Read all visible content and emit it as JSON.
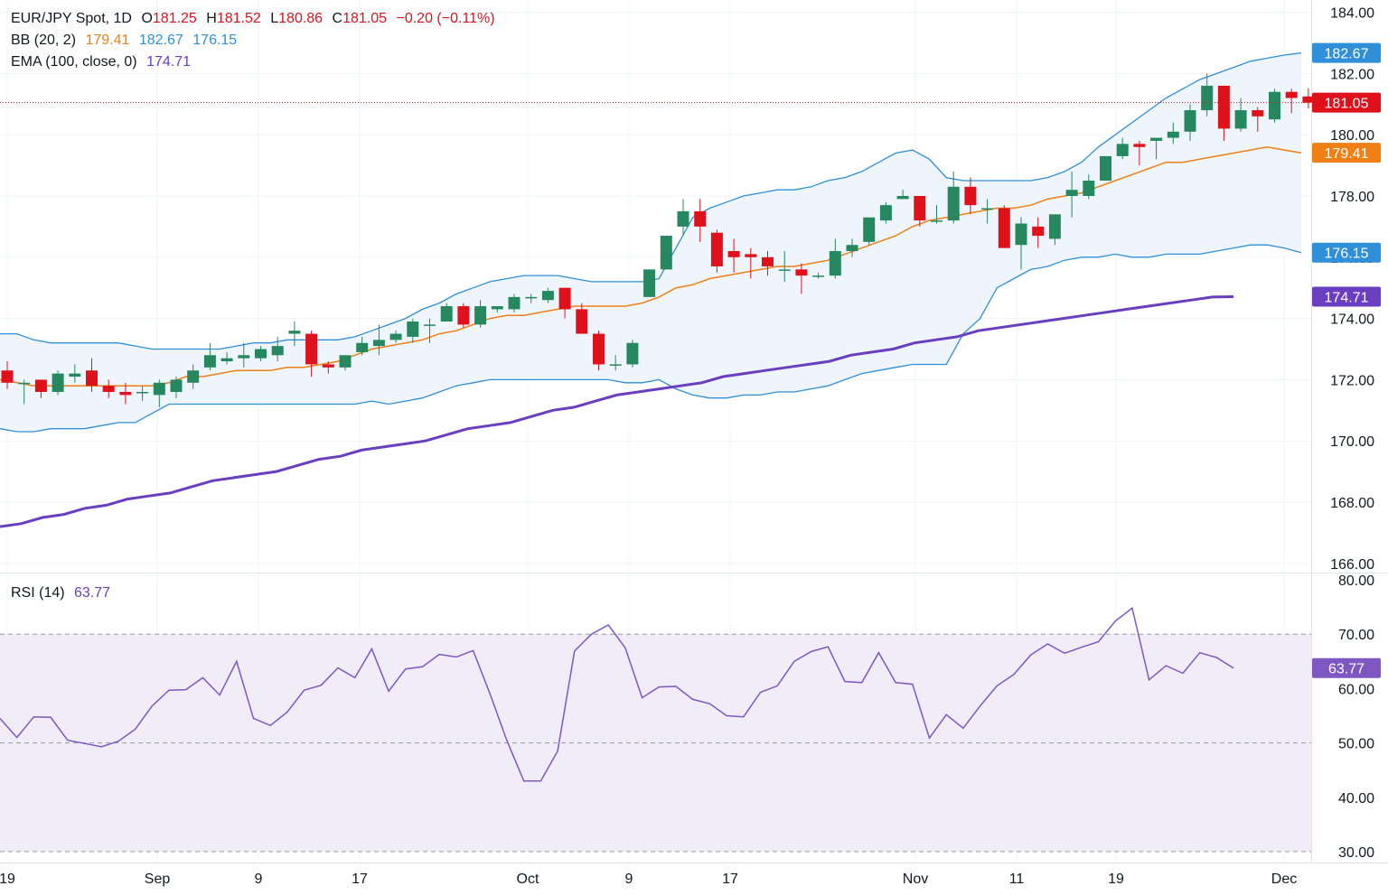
{
  "header": {
    "symbol": "EUR/JPY Spot, 1D",
    "open_label": "O",
    "open": "181.25",
    "high_label": "H",
    "high": "181.52",
    "low_label": "L",
    "low": "180.86",
    "close_label": "C",
    "close": "181.05",
    "change": "−0.20 (−0.11%)"
  },
  "indicators": {
    "bb": {
      "label": "BB (20, 2)",
      "basis": "179.41",
      "upper": "182.67",
      "lower": "176.15"
    },
    "ema": {
      "label": "EMA (100, close, 0)",
      "value": "174.71"
    },
    "rsi": {
      "label": "RSI (14)",
      "value": "63.77"
    }
  },
  "colors": {
    "up": "#26885e",
    "down": "#e0111b",
    "bb_band": "#2f8fd8",
    "bb_basis": "#f07f16",
    "ema": "#6a3ec0",
    "rsi": "#7e57c2",
    "rsi_fill": "#f0ecf8",
    "bb_fill": "#eef5fc"
  },
  "chart_data": [
    {
      "type": "candlestick",
      "title": "EUR/JPY Spot, 1D",
      "ylim": [
        165.7,
        184.4
      ],
      "y_ticks": [
        "184.00",
        "182.00",
        "180.00",
        "178.00",
        "176.00",
        "174.00",
        "172.00",
        "170.00",
        "168.00",
        "166.00"
      ],
      "x_ticks": [
        "19",
        "Sep",
        "9",
        "17",
        "Oct",
        "9",
        "17",
        "Nov",
        "11",
        "19",
        "Dec"
      ],
      "candles": [
        {
          "o": 172.3,
          "h": 172.6,
          "l": 171.7,
          "c": 171.9
        },
        {
          "o": 171.9,
          "h": 172.0,
          "l": 171.2,
          "c": 171.9
        },
        {
          "o": 172.0,
          "h": 172.0,
          "l": 171.4,
          "c": 171.6
        },
        {
          "o": 171.6,
          "h": 172.3,
          "l": 171.5,
          "c": 172.2
        },
        {
          "o": 172.1,
          "h": 172.5,
          "l": 171.9,
          "c": 172.2
        },
        {
          "o": 172.3,
          "h": 172.7,
          "l": 171.6,
          "c": 171.8
        },
        {
          "o": 171.8,
          "h": 172.0,
          "l": 171.4,
          "c": 171.6
        },
        {
          "o": 171.6,
          "h": 171.9,
          "l": 171.2,
          "c": 171.5
        },
        {
          "o": 171.6,
          "h": 171.8,
          "l": 171.3,
          "c": 171.6
        },
        {
          "o": 171.5,
          "h": 172.0,
          "l": 171.1,
          "c": 171.9
        },
        {
          "o": 171.6,
          "h": 172.1,
          "l": 171.4,
          "c": 172.0
        },
        {
          "o": 171.9,
          "h": 172.5,
          "l": 171.7,
          "c": 172.3
        },
        {
          "o": 172.4,
          "h": 173.2,
          "l": 172.3,
          "c": 172.8
        },
        {
          "o": 172.6,
          "h": 172.9,
          "l": 172.5,
          "c": 172.7
        },
        {
          "o": 172.7,
          "h": 173.2,
          "l": 172.4,
          "c": 172.8
        },
        {
          "o": 172.7,
          "h": 173.1,
          "l": 172.6,
          "c": 173.0
        },
        {
          "o": 172.8,
          "h": 173.4,
          "l": 172.6,
          "c": 173.1
        },
        {
          "o": 173.5,
          "h": 173.9,
          "l": 173.1,
          "c": 173.6
        },
        {
          "o": 173.5,
          "h": 173.6,
          "l": 172.1,
          "c": 172.5
        },
        {
          "o": 172.5,
          "h": 172.6,
          "l": 172.2,
          "c": 172.4
        },
        {
          "o": 172.4,
          "h": 172.8,
          "l": 172.3,
          "c": 172.8
        },
        {
          "o": 172.9,
          "h": 173.4,
          "l": 172.8,
          "c": 173.2
        },
        {
          "o": 173.1,
          "h": 173.8,
          "l": 172.8,
          "c": 173.3
        },
        {
          "o": 173.3,
          "h": 173.6,
          "l": 173.2,
          "c": 173.5
        },
        {
          "o": 173.4,
          "h": 174.0,
          "l": 173.2,
          "c": 173.9
        },
        {
          "o": 173.8,
          "h": 174.0,
          "l": 173.2,
          "c": 173.8
        },
        {
          "o": 173.9,
          "h": 174.5,
          "l": 173.9,
          "c": 174.4
        },
        {
          "o": 174.4,
          "h": 174.5,
          "l": 173.7,
          "c": 173.8
        },
        {
          "o": 173.8,
          "h": 174.6,
          "l": 173.7,
          "c": 174.4
        },
        {
          "o": 174.3,
          "h": 174.4,
          "l": 174.2,
          "c": 174.4
        },
        {
          "o": 174.3,
          "h": 174.8,
          "l": 174.2,
          "c": 174.7
        },
        {
          "o": 174.7,
          "h": 174.8,
          "l": 174.5,
          "c": 174.7
        },
        {
          "o": 174.6,
          "h": 175.0,
          "l": 174.5,
          "c": 174.9
        },
        {
          "o": 175.0,
          "h": 175.0,
          "l": 174.0,
          "c": 174.3
        },
        {
          "o": 174.3,
          "h": 174.5,
          "l": 173.5,
          "c": 173.5
        },
        {
          "o": 173.5,
          "h": 173.6,
          "l": 172.3,
          "c": 172.5
        },
        {
          "o": 172.5,
          "h": 172.8,
          "l": 172.3,
          "c": 172.5
        },
        {
          "o": 172.5,
          "h": 173.3,
          "l": 172.4,
          "c": 173.2
        },
        {
          "o": 174.7,
          "h": 175.6,
          "l": 174.7,
          "c": 175.6
        },
        {
          "o": 175.6,
          "h": 176.7,
          "l": 175.6,
          "c": 176.7
        },
        {
          "o": 177.0,
          "h": 177.9,
          "l": 176.7,
          "c": 177.5
        },
        {
          "o": 177.5,
          "h": 177.9,
          "l": 176.5,
          "c": 177.0
        },
        {
          "o": 176.8,
          "h": 176.9,
          "l": 175.5,
          "c": 175.7
        },
        {
          "o": 176.2,
          "h": 176.6,
          "l": 175.5,
          "c": 176.0
        },
        {
          "o": 176.1,
          "h": 176.3,
          "l": 175.3,
          "c": 176.0
        },
        {
          "o": 176.0,
          "h": 176.2,
          "l": 175.4,
          "c": 175.7
        },
        {
          "o": 175.6,
          "h": 176.2,
          "l": 175.2,
          "c": 175.6
        },
        {
          "o": 175.6,
          "h": 175.8,
          "l": 174.8,
          "c": 175.4
        },
        {
          "o": 175.4,
          "h": 175.5,
          "l": 175.3,
          "c": 175.4
        },
        {
          "o": 175.4,
          "h": 176.6,
          "l": 175.3,
          "c": 176.2
        },
        {
          "o": 176.2,
          "h": 176.6,
          "l": 176.0,
          "c": 176.4
        },
        {
          "o": 176.5,
          "h": 177.3,
          "l": 176.4,
          "c": 177.3
        },
        {
          "o": 177.2,
          "h": 177.8,
          "l": 177.1,
          "c": 177.7
        },
        {
          "o": 177.9,
          "h": 178.2,
          "l": 177.9,
          "c": 178.0
        },
        {
          "o": 178.0,
          "h": 178.0,
          "l": 177.0,
          "c": 177.2
        },
        {
          "o": 177.2,
          "h": 177.7,
          "l": 177.1,
          "c": 177.2
        },
        {
          "o": 177.2,
          "h": 178.8,
          "l": 177.1,
          "c": 178.3
        },
        {
          "o": 178.3,
          "h": 178.6,
          "l": 177.4,
          "c": 177.7
        },
        {
          "o": 177.6,
          "h": 177.9,
          "l": 177.1,
          "c": 177.6
        },
        {
          "o": 177.6,
          "h": 177.7,
          "l": 176.3,
          "c": 176.3
        },
        {
          "o": 176.4,
          "h": 177.3,
          "l": 175.6,
          "c": 177.1
        },
        {
          "o": 177.0,
          "h": 177.3,
          "l": 176.3,
          "c": 176.7
        },
        {
          "o": 176.6,
          "h": 177.4,
          "l": 176.4,
          "c": 177.4
        },
        {
          "o": 178.0,
          "h": 178.8,
          "l": 177.3,
          "c": 178.2
        },
        {
          "o": 178.0,
          "h": 178.7,
          "l": 177.9,
          "c": 178.5
        },
        {
          "o": 178.5,
          "h": 179.3,
          "l": 178.5,
          "c": 179.3
        },
        {
          "o": 179.3,
          "h": 179.9,
          "l": 179.2,
          "c": 179.7
        },
        {
          "o": 179.7,
          "h": 179.8,
          "l": 179.0,
          "c": 179.6
        },
        {
          "o": 179.8,
          "h": 179.9,
          "l": 179.2,
          "c": 179.9
        },
        {
          "o": 179.9,
          "h": 180.4,
          "l": 179.7,
          "c": 180.1
        },
        {
          "o": 180.1,
          "h": 181.0,
          "l": 179.8,
          "c": 180.8
        },
        {
          "o": 180.8,
          "h": 182.0,
          "l": 180.6,
          "c": 181.6
        },
        {
          "o": 181.6,
          "h": 181.6,
          "l": 179.8,
          "c": 180.2
        },
        {
          "o": 180.2,
          "h": 181.2,
          "l": 180.1,
          "c": 180.8
        },
        {
          "o": 180.8,
          "h": 180.9,
          "l": 180.1,
          "c": 180.6
        },
        {
          "o": 180.5,
          "h": 181.5,
          "l": 180.4,
          "c": 181.4
        },
        {
          "o": 181.4,
          "h": 181.5,
          "l": 180.7,
          "c": 181.2
        },
        {
          "o": 181.25,
          "h": 181.52,
          "l": 180.86,
          "c": 181.05
        }
      ],
      "bb_upper": [
        173.5,
        173.5,
        173.3,
        173.2,
        173.2,
        173.2,
        173.2,
        173.2,
        173.1,
        173.0,
        173.0,
        173.0,
        173.0,
        173.0,
        173.1,
        173.2,
        173.2,
        173.3,
        173.3,
        173.3,
        173.3,
        173.4,
        173.6,
        173.8,
        174.0,
        174.3,
        174.5,
        174.8,
        175.0,
        175.2,
        175.3,
        175.4,
        175.4,
        175.4,
        175.3,
        175.2,
        175.2,
        175.2,
        175.2,
        175.3,
        176.3,
        177.3,
        177.6,
        177.8,
        178.0,
        178.1,
        178.2,
        178.2,
        178.3,
        178.5,
        178.6,
        178.8,
        179.1,
        179.4,
        179.5,
        179.2,
        178.6,
        178.5,
        178.5,
        178.5,
        178.5,
        178.5,
        178.6,
        178.8,
        179.1,
        179.6,
        180.0,
        180.4,
        180.8,
        181.2,
        181.5,
        181.8,
        182.0,
        182.2,
        182.4,
        182.5,
        182.6,
        182.67
      ],
      "bb_basis": [
        172.0,
        171.9,
        171.8,
        171.8,
        171.8,
        171.8,
        171.8,
        171.8,
        171.8,
        171.8,
        171.9,
        172.1,
        172.1,
        172.2,
        172.3,
        172.3,
        172.3,
        172.4,
        172.4,
        172.5,
        172.6,
        172.8,
        173.0,
        173.1,
        173.2,
        173.3,
        173.5,
        173.6,
        173.8,
        174.0,
        174.1,
        174.1,
        174.2,
        174.3,
        174.4,
        174.4,
        174.4,
        174.4,
        174.5,
        174.7,
        175.0,
        175.1,
        175.3,
        175.4,
        175.5,
        175.6,
        175.7,
        175.7,
        175.8,
        175.9,
        176.1,
        176.3,
        176.5,
        176.7,
        177.0,
        177.2,
        177.3,
        177.4,
        177.5,
        177.6,
        177.6,
        177.7,
        177.9,
        178.0,
        178.1,
        178.3,
        178.5,
        178.7,
        178.9,
        179.1,
        179.1,
        179.2,
        179.3,
        179.4,
        179.5,
        179.6,
        179.5,
        179.41
      ],
      "bb_lower": [
        170.4,
        170.3,
        170.3,
        170.4,
        170.4,
        170.4,
        170.5,
        170.6,
        170.6,
        170.9,
        171.2,
        171.2,
        171.2,
        171.2,
        171.2,
        171.2,
        171.2,
        171.2,
        171.2,
        171.2,
        171.2,
        171.2,
        171.3,
        171.2,
        171.3,
        171.4,
        171.6,
        171.8,
        171.9,
        172.0,
        172.0,
        172.0,
        172.0,
        172.0,
        172.0,
        172.0,
        172.0,
        171.9,
        171.9,
        172.0,
        171.7,
        171.5,
        171.4,
        171.4,
        171.5,
        171.5,
        171.6,
        171.6,
        171.7,
        171.8,
        172.0,
        172.2,
        172.3,
        172.4,
        172.5,
        172.5,
        172.5,
        173.5,
        174.0,
        175.0,
        175.3,
        175.6,
        175.7,
        175.9,
        176.0,
        176.0,
        176.1,
        176.0,
        176.0,
        176.1,
        176.1,
        176.1,
        176.2,
        176.3,
        176.4,
        176.4,
        176.3,
        176.15
      ],
      "ema100": [
        167.2,
        167.3,
        167.5,
        167.6,
        167.8,
        167.9,
        168.1,
        168.2,
        168.3,
        168.5,
        168.7,
        168.8,
        168.9,
        169.0,
        169.2,
        169.4,
        169.5,
        169.7,
        169.8,
        169.9,
        170.0,
        170.2,
        170.4,
        170.5,
        170.6,
        170.8,
        171.0,
        171.1,
        171.3,
        171.5,
        171.6,
        171.7,
        171.8,
        171.9,
        172.1,
        172.2,
        172.3,
        172.4,
        172.5,
        172.6,
        172.8,
        172.9,
        173.0,
        173.2,
        173.3,
        173.4,
        173.6,
        173.7,
        173.8,
        173.9,
        174.0,
        174.1,
        174.2,
        174.3,
        174.4,
        174.5,
        174.6,
        174.7,
        174.71
      ]
    },
    {
      "type": "line",
      "title": "RSI (14)",
      "ylim": [
        28.0,
        81.0
      ],
      "y_ticks": [
        "80.00",
        "70.00",
        "60.00",
        "50.00",
        "40.00",
        "30.00"
      ],
      "bands": [
        30,
        50,
        70
      ],
      "series": [
        {
          "name": "RSI (14)",
          "values": [
            54.5,
            51.0,
            54.8,
            54.7,
            50.5,
            49.9,
            49.3,
            50.3,
            52.5,
            56.8,
            59.7,
            59.8,
            62.0,
            58.8,
            65.0,
            54.5,
            53.2,
            55.7,
            59.7,
            60.6,
            63.8,
            62.0,
            67.3,
            59.5,
            63.6,
            64.0,
            66.3,
            65.8,
            67.0,
            59.0,
            50.4,
            43.0,
            43.0,
            48.5,
            66.9,
            70.0,
            71.7,
            67.5,
            58.3,
            60.3,
            60.4,
            58.0,
            57.2,
            55.0,
            54.8,
            59.3,
            60.5,
            65.0,
            66.8,
            67.7,
            61.3,
            61.1,
            66.6,
            61.1,
            60.8,
            50.9,
            55.2,
            52.7,
            56.8,
            60.5,
            62.6,
            66.2,
            68.2,
            66.5,
            67.6,
            68.6,
            72.4,
            74.8,
            61.6,
            64.2,
            62.8,
            66.6,
            65.7,
            63.77
          ]
        }
      ]
    }
  ]
}
